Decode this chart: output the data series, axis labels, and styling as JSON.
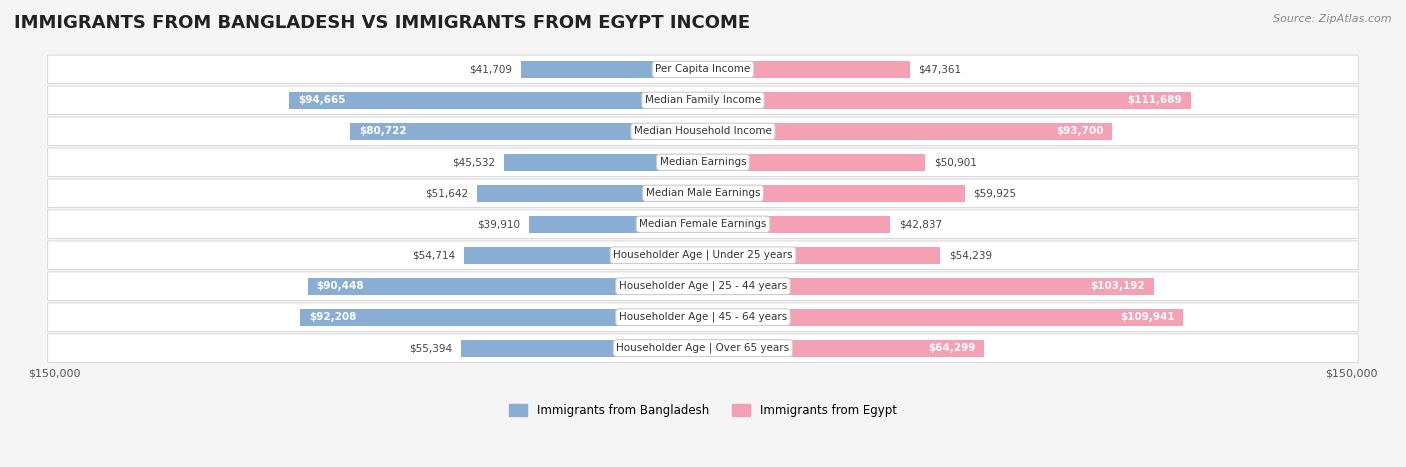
{
  "title": "IMMIGRANTS FROM BANGLADESH VS IMMIGRANTS FROM EGYPT INCOME",
  "source": "Source: ZipAtlas.com",
  "categories": [
    "Per Capita Income",
    "Median Family Income",
    "Median Household Income",
    "Median Earnings",
    "Median Male Earnings",
    "Median Female Earnings",
    "Householder Age | Under 25 years",
    "Householder Age | 25 - 44 years",
    "Householder Age | 45 - 64 years",
    "Householder Age | Over 65 years"
  ],
  "bangladesh_values": [
    41709,
    94665,
    80722,
    45532,
    51642,
    39910,
    54714,
    90448,
    92208,
    55394
  ],
  "egypt_values": [
    47361,
    111689,
    93700,
    50901,
    59925,
    42837,
    54239,
    103192,
    109941,
    64299
  ],
  "bangladesh_color": "#8aadd4",
  "egypt_color": "#f4a0b5",
  "bangladesh_label": "Immigrants from Bangladesh",
  "egypt_label": "Immigrants from Egypt",
  "max_value": 150000,
  "bg_color": "#f5f5f5",
  "row_bg_color": "#ffffff",
  "label_fontsize": 8.5,
  "title_fontsize": 13,
  "axis_label": "$150,000"
}
